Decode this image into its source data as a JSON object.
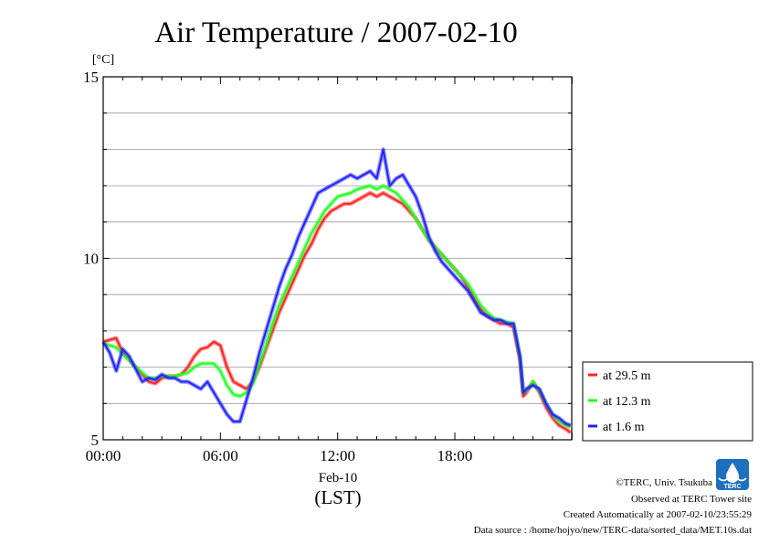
{
  "chart_data": {
    "type": "line",
    "title": "Air Temperature / 2007-02-10",
    "ylabel": "[°C]",
    "xlabel": "(LST)",
    "x_date_label": "Feb-10",
    "xlim": [
      "00:00",
      "23:59"
    ],
    "ylim": [
      5,
      15
    ],
    "x_ticks": [
      "00:00",
      "06:00",
      "12:00",
      "18:00"
    ],
    "y_ticks": [
      "5",
      "10",
      "15"
    ],
    "grid": true,
    "legend_position": "right",
    "series": [
      {
        "name": "at 29.5 m",
        "color": "#ff2020",
        "x": [
          "00:00",
          "00:20",
          "00:40",
          "01:00",
          "01:20",
          "01:40",
          "02:00",
          "02:20",
          "02:40",
          "03:00",
          "03:20",
          "03:40",
          "04:00",
          "04:20",
          "04:40",
          "05:00",
          "05:20",
          "05:40",
          "06:00",
          "06:20",
          "06:40",
          "07:00",
          "07:20",
          "07:40",
          "08:00",
          "08:20",
          "08:40",
          "09:00",
          "09:20",
          "09:40",
          "10:00",
          "10:20",
          "10:40",
          "11:00",
          "11:20",
          "11:40",
          "12:00",
          "12:20",
          "12:40",
          "13:00",
          "13:20",
          "13:40",
          "14:00",
          "14:20",
          "14:40",
          "15:00",
          "15:20",
          "15:40",
          "16:00",
          "16:20",
          "16:40",
          "17:00",
          "17:20",
          "17:40",
          "18:00",
          "18:20",
          "18:40",
          "19:00",
          "19:20",
          "19:40",
          "20:00",
          "20:20",
          "20:40",
          "21:00",
          "21:20",
          "21:30",
          "21:40",
          "22:00",
          "22:20",
          "22:40",
          "23:00",
          "23:20",
          "23:40",
          "23:55"
        ],
        "values": [
          7.7,
          7.75,
          7.8,
          7.4,
          7.2,
          7.0,
          6.8,
          6.6,
          6.55,
          6.7,
          6.75,
          6.75,
          6.8,
          7.0,
          7.3,
          7.5,
          7.55,
          7.7,
          7.6,
          7.0,
          6.6,
          6.5,
          6.4,
          6.6,
          7.0,
          7.5,
          8.0,
          8.5,
          8.9,
          9.3,
          9.7,
          10.1,
          10.4,
          10.8,
          11.1,
          11.3,
          11.4,
          11.5,
          11.5,
          11.6,
          11.7,
          11.8,
          11.7,
          11.8,
          11.7,
          11.6,
          11.5,
          11.3,
          11.1,
          10.8,
          10.5,
          10.3,
          10.1,
          9.9,
          9.7,
          9.5,
          9.2,
          8.9,
          8.6,
          8.4,
          8.3,
          8.2,
          8.2,
          8.1,
          7.2,
          6.2,
          6.3,
          6.6,
          6.3,
          5.9,
          5.6,
          5.4,
          5.3,
          5.2
        ]
      },
      {
        "name": "at 12.3 m",
        "color": "#20ff20",
        "x": [
          "00:00",
          "00:20",
          "00:40",
          "01:00",
          "01:20",
          "01:40",
          "02:00",
          "02:20",
          "02:40",
          "03:00",
          "03:20",
          "03:40",
          "04:00",
          "04:20",
          "04:40",
          "05:00",
          "05:20",
          "05:40",
          "06:00",
          "06:20",
          "06:40",
          "07:00",
          "07:20",
          "07:40",
          "08:00",
          "08:20",
          "08:40",
          "09:00",
          "09:20",
          "09:40",
          "10:00",
          "10:20",
          "10:40",
          "11:00",
          "11:20",
          "11:40",
          "12:00",
          "12:20",
          "12:40",
          "13:00",
          "13:20",
          "13:40",
          "14:00",
          "14:20",
          "14:40",
          "15:00",
          "15:20",
          "15:40",
          "16:00",
          "16:20",
          "16:40",
          "17:00",
          "17:20",
          "17:40",
          "18:00",
          "18:20",
          "18:40",
          "19:00",
          "19:20",
          "19:40",
          "20:00",
          "20:20",
          "20:40",
          "21:00",
          "21:20",
          "21:30",
          "21:40",
          "22:00",
          "22:20",
          "22:40",
          "23:00",
          "23:20",
          "23:40",
          "23:55"
        ],
        "values": [
          7.65,
          7.6,
          7.55,
          7.35,
          7.2,
          7.0,
          6.85,
          6.7,
          6.7,
          6.75,
          6.75,
          6.75,
          6.8,
          6.85,
          7.0,
          7.1,
          7.1,
          7.1,
          6.9,
          6.5,
          6.25,
          6.2,
          6.3,
          6.55,
          7.1,
          7.6,
          8.2,
          8.7,
          9.1,
          9.5,
          9.9,
          10.3,
          10.7,
          11.0,
          11.3,
          11.5,
          11.7,
          11.75,
          11.8,
          11.9,
          11.95,
          12.0,
          11.9,
          12.0,
          11.9,
          11.8,
          11.6,
          11.4,
          11.1,
          10.8,
          10.5,
          10.3,
          10.1,
          9.9,
          9.7,
          9.5,
          9.3,
          9.0,
          8.7,
          8.5,
          8.35,
          8.3,
          8.25,
          8.2,
          7.3,
          6.3,
          6.35,
          6.6,
          6.35,
          6.0,
          5.7,
          5.5,
          5.4,
          5.35
        ]
      },
      {
        "name": "at 1.6 m",
        "color": "#2020ff",
        "x": [
          "00:00",
          "00:20",
          "00:40",
          "01:00",
          "01:20",
          "01:40",
          "02:00",
          "02:20",
          "02:40",
          "03:00",
          "03:20",
          "03:40",
          "04:00",
          "04:20",
          "04:40",
          "05:00",
          "05:20",
          "05:40",
          "06:00",
          "06:20",
          "06:40",
          "07:00",
          "07:20",
          "07:40",
          "08:00",
          "08:20",
          "08:40",
          "09:00",
          "09:20",
          "09:40",
          "10:00",
          "10:20",
          "10:40",
          "11:00",
          "11:20",
          "11:40",
          "12:00",
          "12:20",
          "12:40",
          "13:00",
          "13:20",
          "13:40",
          "14:00",
          "14:20",
          "14:40",
          "15:00",
          "15:20",
          "15:40",
          "16:00",
          "16:20",
          "16:40",
          "17:00",
          "17:20",
          "17:40",
          "18:00",
          "18:20",
          "18:40",
          "19:00",
          "19:20",
          "19:40",
          "20:00",
          "20:20",
          "20:40",
          "21:00",
          "21:20",
          "21:30",
          "21:40",
          "22:00",
          "22:20",
          "22:40",
          "23:00",
          "23:20",
          "23:40",
          "23:55"
        ],
        "values": [
          7.7,
          7.4,
          6.9,
          7.5,
          7.3,
          6.95,
          6.6,
          6.7,
          6.65,
          6.8,
          6.7,
          6.7,
          6.6,
          6.6,
          6.5,
          6.4,
          6.6,
          6.3,
          6.0,
          5.7,
          5.5,
          5.5,
          6.1,
          6.7,
          7.4,
          8.0,
          8.6,
          9.2,
          9.7,
          10.1,
          10.6,
          11.0,
          11.4,
          11.8,
          11.9,
          12.0,
          12.1,
          12.2,
          12.3,
          12.2,
          12.3,
          12.4,
          12.2,
          13.0,
          12.0,
          12.2,
          12.3,
          12.0,
          11.7,
          11.2,
          10.6,
          10.2,
          9.9,
          9.7,
          9.5,
          9.3,
          9.1,
          8.8,
          8.5,
          8.4,
          8.3,
          8.3,
          8.2,
          8.2,
          7.3,
          6.3,
          6.4,
          6.5,
          6.4,
          6.0,
          5.7,
          5.6,
          5.45,
          5.4
        ]
      }
    ]
  },
  "credits": {
    "copyright": "©TERC, Univ. Tsukuba",
    "site": "Observed at TERC Tower site",
    "created": "Created Automatically at 2007-02-10/23:55:29",
    "source": "Data source : /home/hojyo/new/TERC-data/sorted_data/MET.10s.dat"
  },
  "logo": {
    "text": "TERC",
    "color": "#1e6fc0"
  }
}
